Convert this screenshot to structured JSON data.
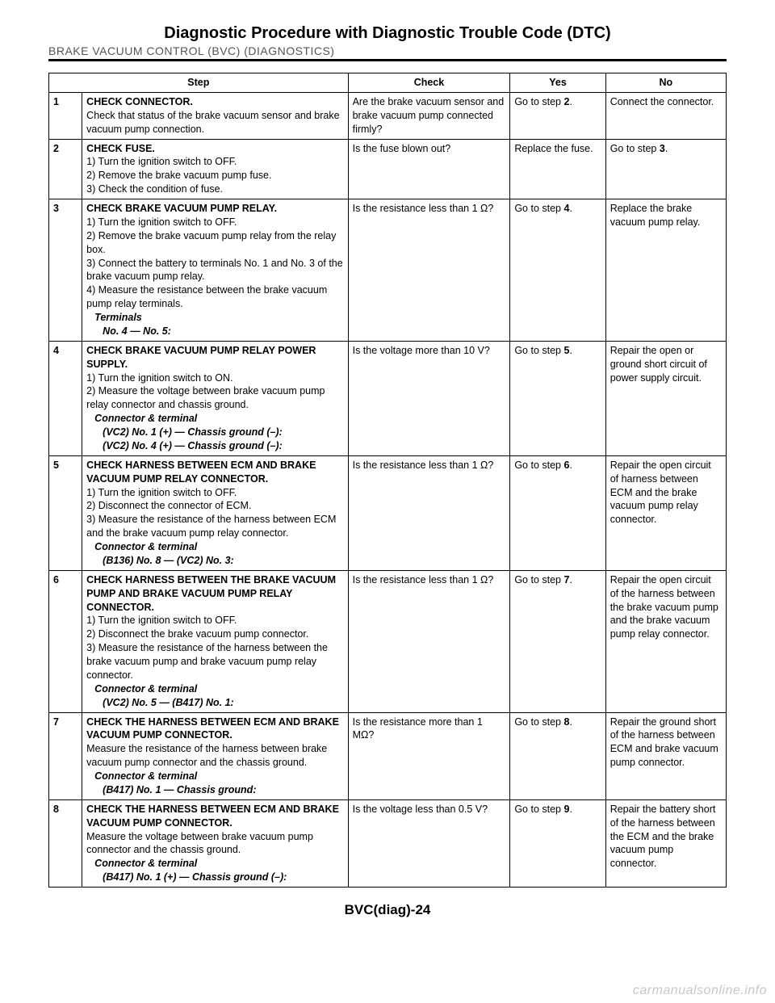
{
  "header": {
    "title": "Diagnostic Procedure with Diagnostic Trouble Code (DTC)",
    "section": "BRAKE VACUUM CONTROL (BVC) (DIAGNOSTICS)"
  },
  "columns": {
    "step": "Step",
    "check": "Check",
    "yes": "Yes",
    "no": "No"
  },
  "rows": [
    {
      "num": "1",
      "title": "CHECK CONNECTOR.",
      "body": [
        "Check that status of the brake vacuum sensor and brake vacuum pump connection."
      ],
      "check": "Are the brake vacuum sensor and brake vacuum pump connected firmly?",
      "yes_pre": "Go to step ",
      "yes_bold": "2",
      "yes_post": ".",
      "no": "Connect the connector."
    },
    {
      "num": "2",
      "title": "CHECK FUSE.",
      "body": [
        "1)  Turn the ignition switch to OFF.",
        "2)  Remove the brake vacuum pump fuse.",
        "3)  Check the condition of fuse."
      ],
      "check": "Is the fuse blown out?",
      "yes_plain": "Replace the fuse.",
      "no_pre": "Go to step ",
      "no_bold": "3",
      "no_post": "."
    },
    {
      "num": "3",
      "title": "CHECK BRAKE VACUUM PUMP RELAY.",
      "body": [
        "1)  Turn the ignition switch to OFF.",
        "2)  Remove the brake vacuum pump relay from the relay box.",
        "3)  Connect the battery to terminals No. 1 and No. 3 of the brake vacuum pump relay.",
        "4)  Measure the resistance between the brake vacuum pump relay terminals."
      ],
      "sub": [
        "Terminals",
        "No. 4 — No. 5:"
      ],
      "check": "Is the resistance less than 1 Ω?",
      "yes_pre": "Go to step ",
      "yes_bold": "4",
      "yes_post": ".",
      "no": "Replace the brake vacuum pump relay."
    },
    {
      "num": "4",
      "title": "CHECK BRAKE VACUUM PUMP RELAY POWER SUPPLY.",
      "body": [
        "1)  Turn the ignition switch to ON.",
        "2)  Measure the voltage between brake vacuum pump relay connector and chassis ground."
      ],
      "sub": [
        "Connector & terminal",
        "(VC2) No. 1 (+) — Chassis ground (–):",
        "(VC2) No. 4 (+) — Chassis ground (–):"
      ],
      "check": "Is the voltage more than 10 V?",
      "yes_pre": "Go to step ",
      "yes_bold": "5",
      "yes_post": ".",
      "no": "Repair the open or ground short circuit of power supply circuit."
    },
    {
      "num": "5",
      "title": "CHECK HARNESS BETWEEN ECM AND BRAKE VACUUM PUMP RELAY CONNECTOR.",
      "body": [
        "1)  Turn the ignition switch to OFF.",
        "2)  Disconnect the connector of ECM.",
        "3)  Measure the resistance of the harness between ECM and the brake vacuum pump relay connector."
      ],
      "sub": [
        "Connector & terminal",
        "(B136) No. 8 — (VC2) No. 3:"
      ],
      "check": "Is the resistance less than 1 Ω?",
      "yes_pre": "Go to step ",
      "yes_bold": "6",
      "yes_post": ".",
      "no": "Repair the open circuit of harness between ECM and the brake vacuum pump relay connector."
    },
    {
      "num": "6",
      "title": "CHECK HARNESS BETWEEN THE BRAKE VACUUM PUMP AND BRAKE VACUUM PUMP RELAY CONNECTOR.",
      "body": [
        "1)  Turn the ignition switch to OFF.",
        "2)  Disconnect the brake vacuum pump connector.",
        "3)  Measure the resistance of the harness between the brake vacuum pump and brake vacuum pump relay connector."
      ],
      "sub": [
        "Connector & terminal",
        "(VC2) No. 5 — (B417) No. 1:"
      ],
      "check": "Is the resistance less than 1 Ω?",
      "yes_pre": "Go to step ",
      "yes_bold": "7",
      "yes_post": ".",
      "no": "Repair the open circuit of the harness between the brake vacuum pump and the brake vacuum pump relay connector."
    },
    {
      "num": "7",
      "title": "CHECK THE HARNESS BETWEEN ECM AND BRAKE VACUUM PUMP CONNECTOR.",
      "body": [
        "Measure the resistance of the harness between brake vacuum pump connector and the chassis ground."
      ],
      "sub": [
        "Connector & terminal",
        "(B417) No. 1 — Chassis ground:"
      ],
      "check": "Is the resistance more than 1 MΩ?",
      "yes_pre": "Go to step ",
      "yes_bold": "8",
      "yes_post": ".",
      "no": "Repair the ground short of the harness between ECM and brake vacuum pump connector."
    },
    {
      "num": "8",
      "title": "CHECK THE HARNESS BETWEEN ECM AND BRAKE VACUUM PUMP CONNECTOR.",
      "body": [
        "Measure the voltage between brake vacuum pump connector and the chassis ground."
      ],
      "sub": [
        "Connector & terminal",
        "(B417) No. 1 (+) — Chassis ground (–):"
      ],
      "check": "Is the voltage less than 0.5 V?",
      "yes_pre": "Go to step ",
      "yes_bold": "9",
      "yes_post": ".",
      "no": "Repair the battery short of the harness between the ECM and the brake vacuum pump connector."
    }
  ],
  "footer": {
    "page": "BVC(diag)-24",
    "watermark": "carmanualsonline.info"
  }
}
